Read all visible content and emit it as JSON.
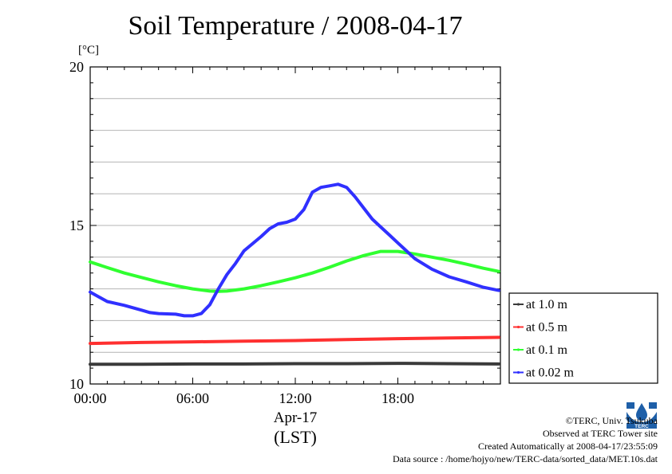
{
  "chart_data": {
    "type": "line",
    "title": "Soil Temperature / 2008-04-17",
    "ylabel": "[°C]",
    "xlabel_date": "Apr-17",
    "xlabel_tz": "(LST)",
    "xlim": [
      0,
      24
    ],
    "ylim": [
      10,
      20
    ],
    "yticks": [
      10,
      15,
      20
    ],
    "ytick_labels": [
      "10",
      "15",
      "20"
    ],
    "xticks": [
      0,
      6,
      12,
      18
    ],
    "xtick_labels": [
      "00:00",
      "06:00",
      "12:00",
      "18:00"
    ],
    "grid": true,
    "legend_position": "right",
    "series": [
      {
        "name": "at 1.0 m",
        "color": "#3a3a3a",
        "x": [
          0,
          3,
          6,
          9,
          12,
          15,
          18,
          21,
          23.9
        ],
        "y": [
          10.62,
          10.62,
          10.63,
          10.63,
          10.64,
          10.64,
          10.65,
          10.64,
          10.63
        ]
      },
      {
        "name": "at 0.5 m",
        "color": "#ff3030",
        "x": [
          0,
          3,
          6,
          9,
          12,
          15,
          18,
          21,
          23.9
        ],
        "y": [
          11.28,
          11.31,
          11.33,
          11.35,
          11.37,
          11.4,
          11.43,
          11.45,
          11.47
        ]
      },
      {
        "name": "at 0.1 m",
        "color": "#30ff30",
        "x": [
          0,
          1,
          2,
          3,
          4,
          5,
          6,
          7,
          7.5,
          8,
          9,
          10,
          11,
          12,
          13,
          14,
          15,
          16,
          17,
          18,
          19,
          20,
          21,
          22,
          23,
          23.9
        ],
        "y": [
          13.85,
          13.67,
          13.5,
          13.36,
          13.22,
          13.1,
          13.0,
          12.93,
          12.92,
          12.93,
          13.0,
          13.1,
          13.22,
          13.35,
          13.5,
          13.68,
          13.88,
          14.05,
          14.18,
          14.18,
          14.1,
          14.0,
          13.9,
          13.78,
          13.65,
          13.55
        ]
      },
      {
        "name": "at 0.02 m",
        "color": "#3030ff",
        "x": [
          0,
          0.5,
          1,
          2,
          3,
          3.5,
          4,
          5,
          5.5,
          6,
          6.5,
          7,
          7.5,
          8,
          8.5,
          9,
          10,
          10.5,
          11,
          11.5,
          12,
          12.5,
          13,
          13.5,
          14,
          14.5,
          15,
          15.5,
          16,
          16.5,
          17,
          17.5,
          18,
          19,
          20,
          21,
          22,
          23,
          23.9
        ],
        "y": [
          12.9,
          12.75,
          12.6,
          12.48,
          12.33,
          12.25,
          12.22,
          12.2,
          12.15,
          12.15,
          12.22,
          12.5,
          13.0,
          13.45,
          13.8,
          14.2,
          14.65,
          14.9,
          15.05,
          15.1,
          15.2,
          15.5,
          16.05,
          16.2,
          16.25,
          16.3,
          16.2,
          15.9,
          15.55,
          15.2,
          14.95,
          14.7,
          14.45,
          13.95,
          13.62,
          13.38,
          13.22,
          13.05,
          12.95
        ]
      }
    ]
  },
  "credits": {
    "copyright": "©TERC, Univ. Tsukuba",
    "observed": "Observed at TERC Tower site",
    "created": "Created Automatically at 2008-04-17/23:55:09",
    "source": "Data source : /home/hojyo/new/TERC-data/sorted_data/MET.10s.dat"
  },
  "logo": {
    "text": "TERC",
    "color": "#1e5fa8"
  }
}
